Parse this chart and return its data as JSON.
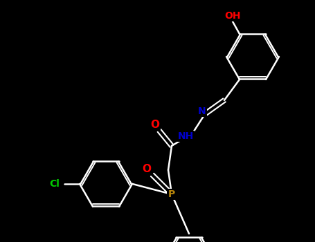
{
  "background_color": "#000000",
  "bond_color": "#ffffff",
  "atom_colors": {
    "Cl": "#00cc00",
    "P": "#b8860b",
    "O": "#ff0000",
    "N": "#0000cd",
    "NH": "#0000cd",
    "OH": "#ff0000",
    "C": "#ffffff"
  },
  "title": "",
  "figsize": [
    4.55,
    3.5
  ],
  "dpi": 100,
  "xlim": [
    0,
    455
  ],
  "ylim": [
    0,
    350
  ]
}
